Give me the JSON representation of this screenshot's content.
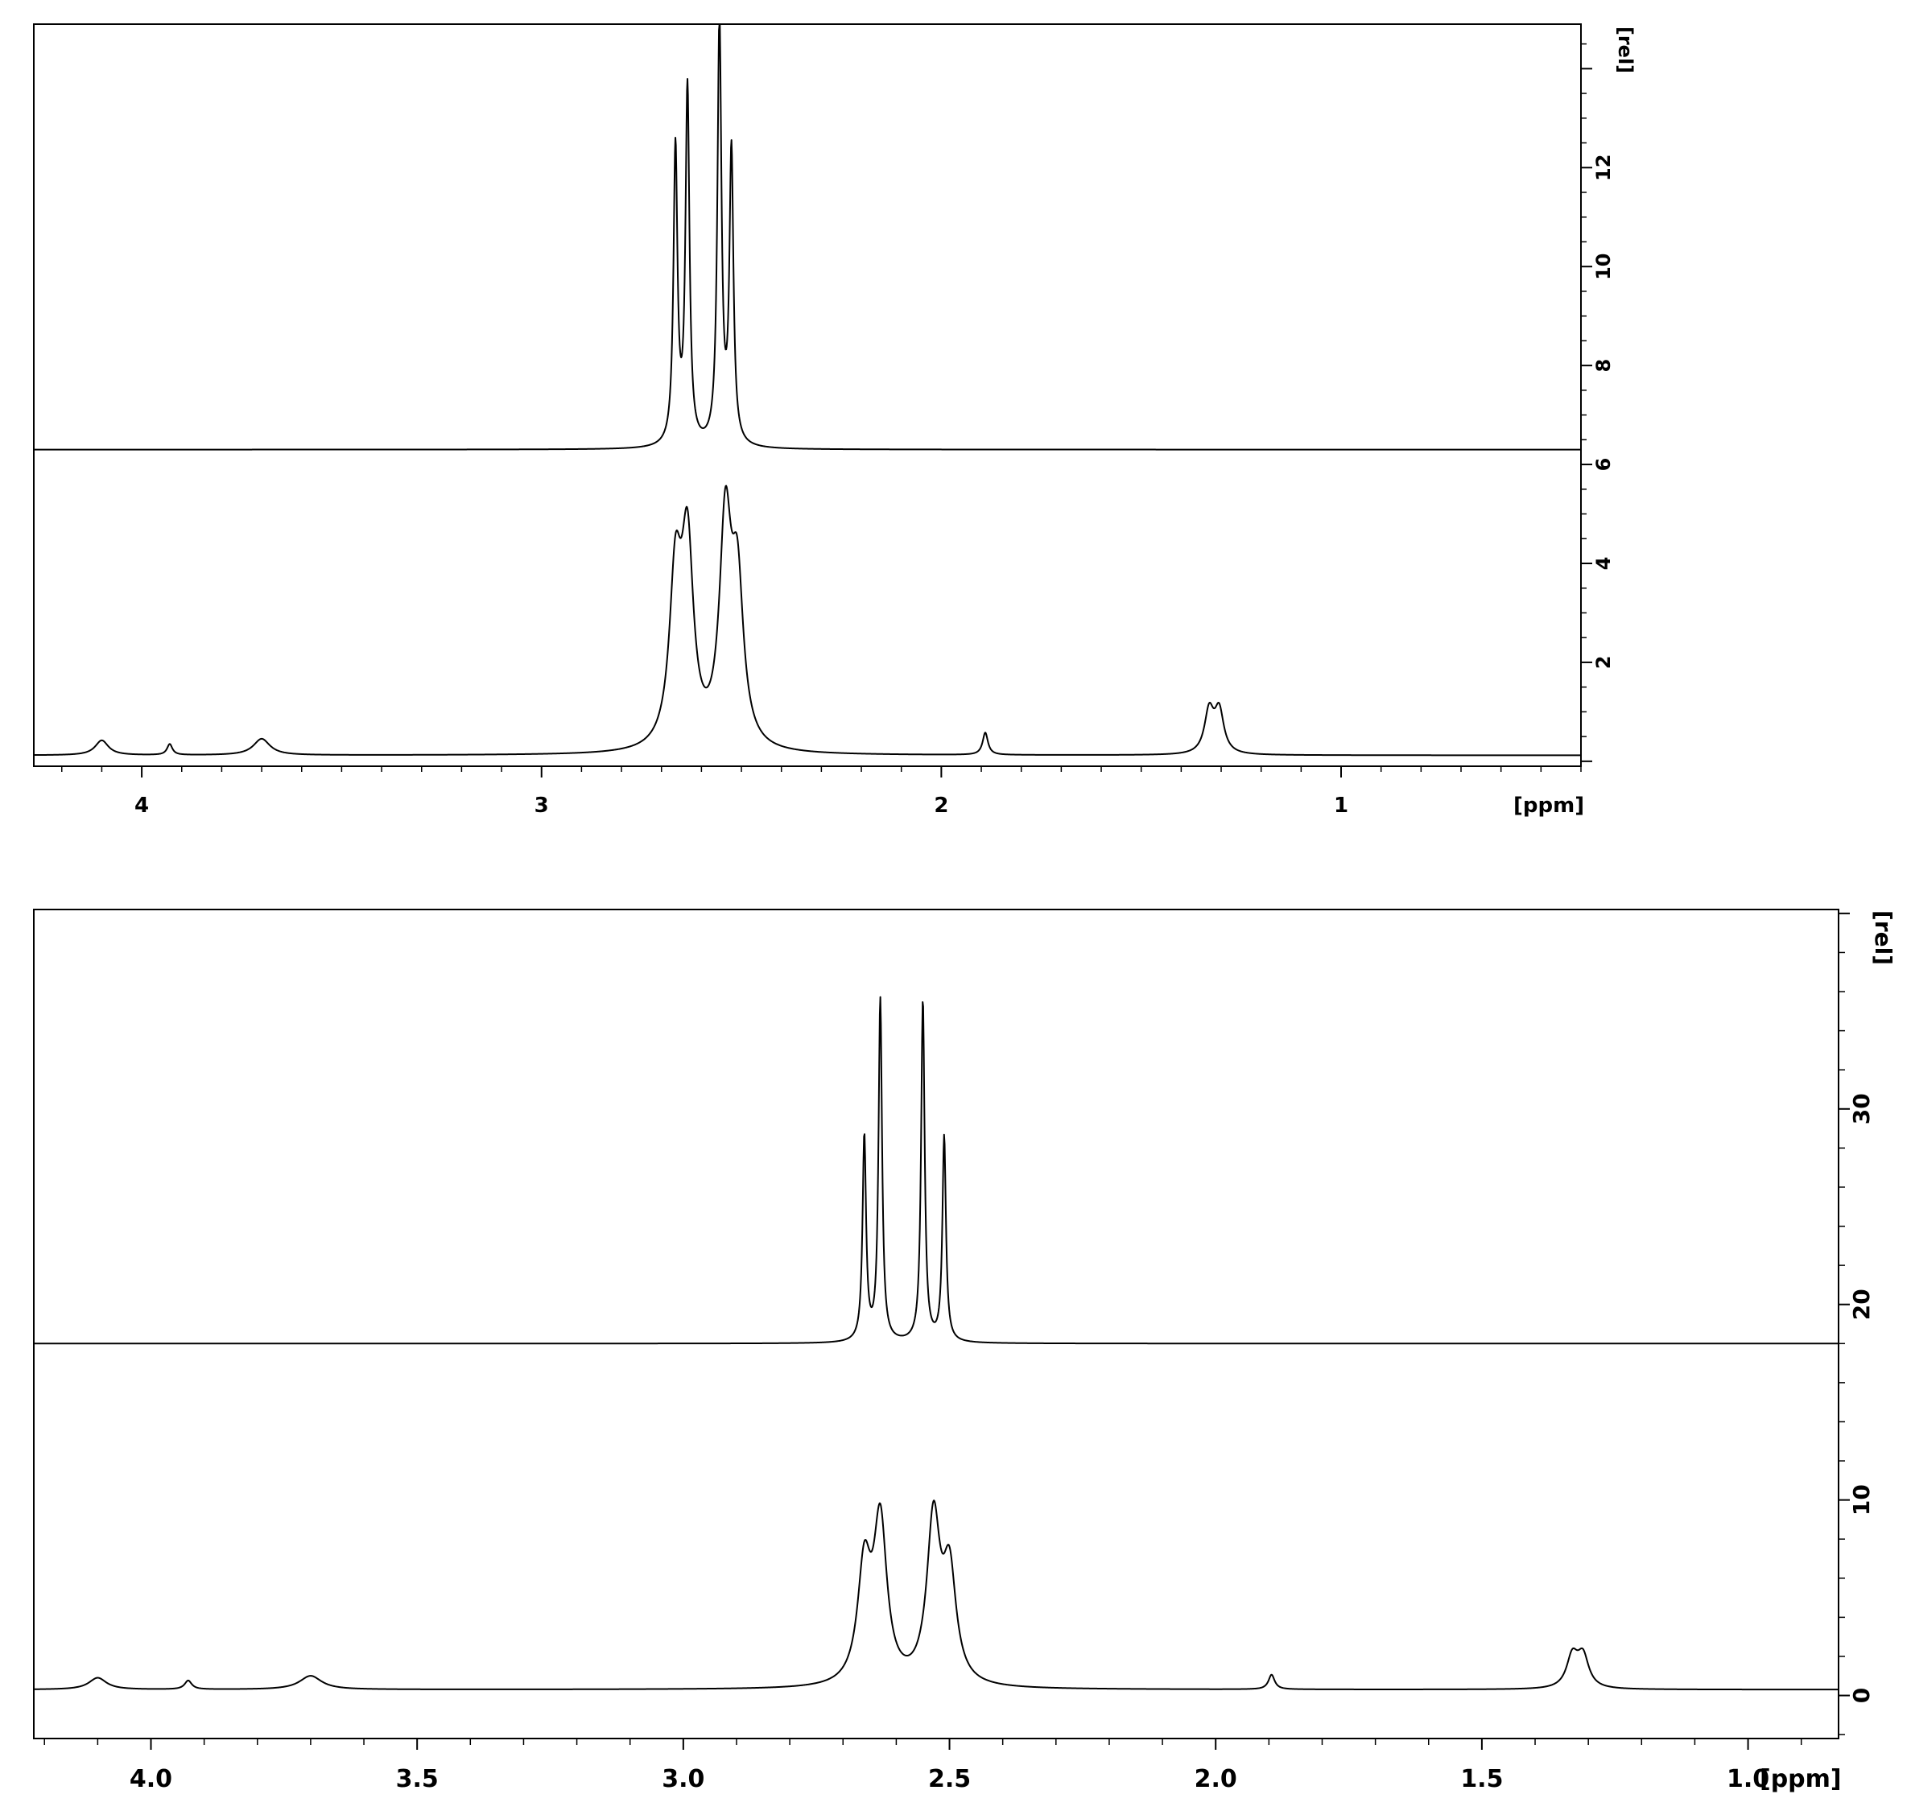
{
  "chart_data": [
    {
      "type": "line",
      "xlabel": "[ppm]",
      "ylabel": "[rel]",
      "xlim": [
        4.27,
        0.4
      ],
      "ylim": [
        -0.1,
        14.9
      ],
      "x_ticks": [
        "4",
        "3",
        "2",
        "1"
      ],
      "y_ticks": [
        "2",
        "4",
        "6",
        "8",
        "10",
        "12"
      ],
      "series": [
        {
          "baseline": 6.3,
          "peaks": [
            {
              "ppm": 2.665,
              "height": 6.0,
              "width": 0.006
            },
            {
              "ppm": 2.635,
              "height": 7.2,
              "width": 0.006
            },
            {
              "ppm": 2.555,
              "height": 8.6,
              "width": 0.006
            },
            {
              "ppm": 2.525,
              "height": 5.9,
              "width": 0.006
            }
          ]
        },
        {
          "baseline": 0.12,
          "peaks": [
            {
              "ppm": 4.1,
              "height": 0.3,
              "width": 0.02
            },
            {
              "ppm": 3.93,
              "height": 0.22,
              "width": 0.008
            },
            {
              "ppm": 3.7,
              "height": 0.33,
              "width": 0.025
            },
            {
              "ppm": 2.665,
              "height": 3.3,
              "width": 0.018
            },
            {
              "ppm": 2.635,
              "height": 3.9,
              "width": 0.018
            },
            {
              "ppm": 2.54,
              "height": 4.4,
              "width": 0.018
            },
            {
              "ppm": 2.51,
              "height": 3.1,
              "width": 0.018
            },
            {
              "ppm": 1.89,
              "height": 0.45,
              "width": 0.008
            },
            {
              "ppm": 1.33,
              "height": 0.85,
              "width": 0.014
            },
            {
              "ppm": 1.305,
              "height": 0.85,
              "width": 0.014
            }
          ]
        }
      ]
    },
    {
      "type": "line",
      "xlabel": "[ppm]",
      "ylabel": "[rel]",
      "xlim": [
        4.22,
        0.83
      ],
      "ylim": [
        -2.2,
        40.2
      ],
      "x_ticks": [
        "4.0",
        "3.5",
        "3.0",
        "2.5",
        "2.0",
        "1.5",
        "1.0"
      ],
      "y_ticks": [
        "0",
        "10",
        "20",
        "30"
      ],
      "series": [
        {
          "baseline": 18.0,
          "peaks": [
            {
              "ppm": 2.66,
              "height": 10.5,
              "width": 0.004
            },
            {
              "ppm": 2.63,
              "height": 17.5,
              "width": 0.004
            },
            {
              "ppm": 2.55,
              "height": 17.5,
              "width": 0.004
            },
            {
              "ppm": 2.51,
              "height": 10.5,
              "width": 0.004
            }
          ]
        },
        {
          "baseline": 0.3,
          "peaks": [
            {
              "ppm": 4.1,
              "height": 0.6,
              "width": 0.02
            },
            {
              "ppm": 3.93,
              "height": 0.45,
              "width": 0.008
            },
            {
              "ppm": 3.7,
              "height": 0.7,
              "width": 0.025
            },
            {
              "ppm": 2.66,
              "height": 5.8,
              "width": 0.015
            },
            {
              "ppm": 2.63,
              "height": 8.1,
              "width": 0.015
            },
            {
              "ppm": 2.53,
              "height": 8.3,
              "width": 0.015
            },
            {
              "ppm": 2.5,
              "height": 5.5,
              "width": 0.015
            },
            {
              "ppm": 1.895,
              "height": 0.75,
              "width": 0.007
            },
            {
              "ppm": 1.33,
              "height": 1.6,
              "width": 0.013
            },
            {
              "ppm": 1.31,
              "height": 1.6,
              "width": 0.013
            }
          ]
        }
      ]
    }
  ]
}
